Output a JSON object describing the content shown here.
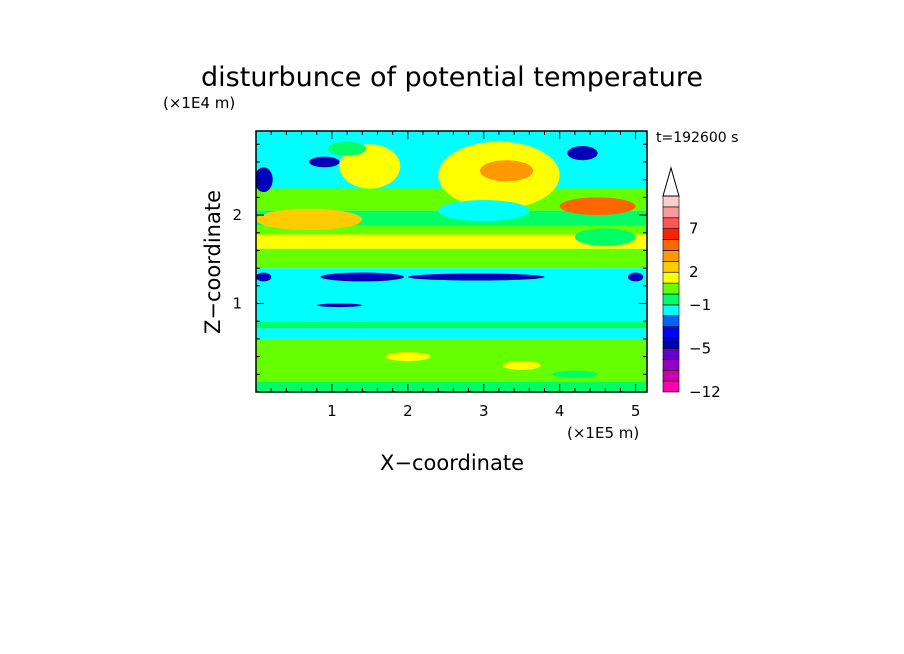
{
  "chart_data": {
    "type": "heatmap",
    "title": "disturbunce of potential temperature",
    "time_label": "t=192600 s",
    "xlabel": "X−coordinate",
    "ylabel": "Z−coordinate",
    "x_unit": "(×1E5 m)",
    "y_unit": "(×1E4 m)",
    "xlim": [
      0,
      5.15
    ],
    "ylim": [
      0,
      2.95
    ],
    "x_ticks": [
      1,
      2,
      3,
      4,
      5
    ],
    "y_ticks": [
      1,
      2
    ],
    "x_tick_labels": [
      "1",
      "2",
      "3",
      "4",
      "5"
    ],
    "y_tick_labels": [
      "1",
      "2"
    ],
    "colorbar": {
      "levels": [
        -12,
        -10,
        -8,
        -7,
        -5,
        -4,
        -3,
        -2,
        -1,
        0,
        1,
        2,
        3,
        4,
        5,
        7,
        8,
        9,
        11
      ],
      "colors": [
        "#ff00aa",
        "#cc00aa",
        "#9900bb",
        "#6600cc",
        "#0000bb",
        "#0000ff",
        "#0066ff",
        "#00ffff",
        "#00ff66",
        "#66ff00",
        "#ffff00",
        "#ffcc00",
        "#ff9900",
        "#ff6600",
        "#ff2200",
        "#ff5555",
        "#ff9999",
        "#ffcccc"
      ],
      "labels": [
        {
          "value": 7,
          "text": "7"
        },
        {
          "value": 2,
          "text": "2"
        },
        {
          "value": -1,
          "text": "−1"
        },
        {
          "value": -5,
          "text": "−5"
        },
        {
          "value": -12,
          "text": "−12"
        }
      ],
      "extend": "max"
    },
    "field": {
      "bands": [
        {
          "z": [
            0.0,
            0.12
          ],
          "value": -0.5
        },
        {
          "z": [
            0.12,
            0.6
          ],
          "value": 0.5
        },
        {
          "z": [
            0.6,
            0.72
          ],
          "value": -1.5
        },
        {
          "z": [
            0.72,
            0.8
          ],
          "value": -0.5
        },
        {
          "z": [
            0.8,
            1.4
          ],
          "value": -1.5
        },
        {
          "z": [
            1.4,
            1.62
          ],
          "value": 0.5
        },
        {
          "z": [
            1.62,
            1.78
          ],
          "value": 1.5
        },
        {
          "z": [
            1.78,
            1.88
          ],
          "value": 0.5
        },
        {
          "z": [
            1.88,
            2.05
          ],
          "value": -0.5
        },
        {
          "z": [
            2.05,
            2.3
          ],
          "value": 0.5
        },
        {
          "z": [
            2.3,
            2.95
          ],
          "value": -1.5
        }
      ],
      "features": [
        {
          "x": 0.7,
          "z": 1.95,
          "rx": 0.7,
          "rz": 0.12,
          "value": 2.5
        },
        {
          "x": 1.5,
          "z": 2.55,
          "rx": 0.4,
          "rz": 0.25,
          "value": 1.5
        },
        {
          "x": 1.2,
          "z": 2.75,
          "rx": 0.25,
          "rz": 0.08,
          "value": -0.5
        },
        {
          "x": 3.2,
          "z": 2.45,
          "rx": 0.8,
          "rz": 0.38,
          "value": 1.5
        },
        {
          "x": 3.3,
          "z": 2.5,
          "rx": 0.35,
          "rz": 0.12,
          "value": 3.5
        },
        {
          "x": 3.0,
          "z": 2.05,
          "rx": 0.6,
          "rz": 0.12,
          "value": -1.5
        },
        {
          "x": 4.5,
          "z": 2.1,
          "rx": 0.5,
          "rz": 0.1,
          "value": 4.5
        },
        {
          "x": 4.6,
          "z": 1.75,
          "rx": 0.4,
          "rz": 0.1,
          "value": -0.5
        },
        {
          "x": 4.3,
          "z": 2.7,
          "rx": 0.2,
          "rz": 0.08,
          "value": -4.5
        },
        {
          "x": 0.9,
          "z": 2.6,
          "rx": 0.2,
          "rz": 0.06,
          "value": -4.5
        },
        {
          "x": 0.1,
          "z": 2.4,
          "rx": 0.12,
          "rz": 0.14,
          "value": -4.5
        },
        {
          "x": 1.4,
          "z": 1.3,
          "rx": 0.55,
          "rz": 0.05,
          "value": -4.5
        },
        {
          "x": 2.9,
          "z": 1.3,
          "rx": 0.9,
          "rz": 0.04,
          "value": -4.5
        },
        {
          "x": 0.1,
          "z": 1.3,
          "rx": 0.1,
          "rz": 0.05,
          "value": -4.5
        },
        {
          "x": 5.0,
          "z": 1.3,
          "rx": 0.1,
          "rz": 0.05,
          "value": -4.5
        },
        {
          "x": 1.1,
          "z": 0.98,
          "rx": 0.3,
          "rz": 0.02,
          "value": -4.5
        },
        {
          "x": 2.0,
          "z": 0.4,
          "rx": 0.3,
          "rz": 0.05,
          "value": 1.5
        },
        {
          "x": 3.5,
          "z": 0.3,
          "rx": 0.25,
          "rz": 0.05,
          "value": 1.5
        },
        {
          "x": 4.2,
          "z": 0.2,
          "rx": 0.3,
          "rz": 0.04,
          "value": -0.5
        }
      ]
    }
  }
}
